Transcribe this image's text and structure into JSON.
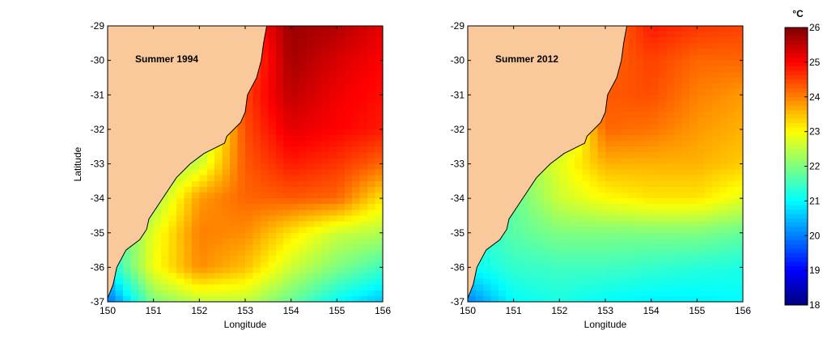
{
  "chart_data": {
    "type": "heatmap",
    "colormap": "jet",
    "land_color": "#fac99b",
    "lon_grid": [
      150,
      151,
      152,
      153,
      154,
      155,
      156
    ],
    "lat_grid": [
      -29,
      -30,
      -31,
      -32,
      -33,
      -34,
      -35,
      -36,
      -37
    ],
    "xlabel": "Longitude",
    "ylabel": "Latitude",
    "xlim": [
      150,
      156
    ],
    "ylim": [
      -37,
      -29
    ],
    "xticks": [
      "150",
      "151",
      "152",
      "153",
      "154",
      "155",
      "156"
    ],
    "yticks": [
      "-29",
      "-30",
      "-31",
      "-32",
      "-33",
      "-34",
      "-35",
      "-36",
      "-37"
    ],
    "coastline": [
      [
        153.47,
        -29
      ],
      [
        153.4,
        -29.5
      ],
      [
        153.35,
        -30
      ],
      [
        153.25,
        -30.5
      ],
      [
        153.05,
        -31
      ],
      [
        153.0,
        -31.5
      ],
      [
        152.9,
        -31.8
      ],
      [
        152.6,
        -32.2
      ],
      [
        152.55,
        -32.4
      ],
      [
        152.1,
        -32.7
      ],
      [
        151.8,
        -33.0
      ],
      [
        151.5,
        -33.4
      ],
      [
        151.3,
        -33.8
      ],
      [
        151.1,
        -34.2
      ],
      [
        150.9,
        -34.6
      ],
      [
        150.85,
        -34.9
      ],
      [
        150.7,
        -35.2
      ],
      [
        150.4,
        -35.5
      ],
      [
        150.2,
        -36.0
      ],
      [
        150.12,
        -36.5
      ],
      [
        150.0,
        -36.9
      ]
    ],
    "panels": [
      {
        "title": "Summer 1994",
        "values": [
          [
            24,
            24,
            24,
            24.5,
            25.8,
            25.6,
            25.2
          ],
          [
            24,
            24,
            24,
            24.2,
            25.7,
            25.3,
            25.0
          ],
          [
            24,
            24,
            24,
            24.5,
            25.5,
            25.1,
            24.9
          ],
          [
            22,
            22,
            22,
            24.4,
            25.2,
            25.0,
            24.8
          ],
          [
            21.5,
            22,
            22.6,
            24.3,
            24.8,
            24.6,
            24.2
          ],
          [
            21.5,
            22.2,
            23.8,
            24.2,
            24.3,
            24.2,
            23.2
          ],
          [
            21.3,
            22.8,
            24.0,
            23.9,
            23.2,
            22.6,
            22.4
          ],
          [
            21.0,
            22.9,
            23.9,
            23.5,
            22.6,
            22.0,
            21.5
          ],
          [
            19.8,
            22.0,
            22.5,
            22.5,
            21.8,
            21.0,
            20.5
          ]
        ]
      },
      {
        "title": "Summer 2012",
        "values": [
          [
            24,
            24,
            24,
            24,
            24.8,
            24.6,
            24.5
          ],
          [
            24,
            24,
            24,
            24.2,
            24.5,
            24.2,
            24.2
          ],
          [
            24,
            24,
            24,
            24.3,
            24.4,
            24.0,
            23.8
          ],
          [
            22,
            22,
            22,
            24.2,
            24.1,
            23.8,
            23.6
          ],
          [
            21.5,
            22,
            22.8,
            23.6,
            23.6,
            23.6,
            23.4
          ],
          [
            21.3,
            21.8,
            22.6,
            23.0,
            23.2,
            23.2,
            22.8
          ],
          [
            21.2,
            21.7,
            22.0,
            22.0,
            22.0,
            22.0,
            21.8
          ],
          [
            21.0,
            21.4,
            21.5,
            21.5,
            21.4,
            21.3,
            21.2
          ],
          [
            20.0,
            21.0,
            21.2,
            21.0,
            20.9,
            20.9,
            21.0
          ]
        ]
      }
    ],
    "colorbar": {
      "label": "°C",
      "range": [
        18,
        26
      ],
      "ticks": [
        "18",
        "19",
        "20",
        "21",
        "22",
        "23",
        "24",
        "25",
        "26"
      ]
    }
  }
}
